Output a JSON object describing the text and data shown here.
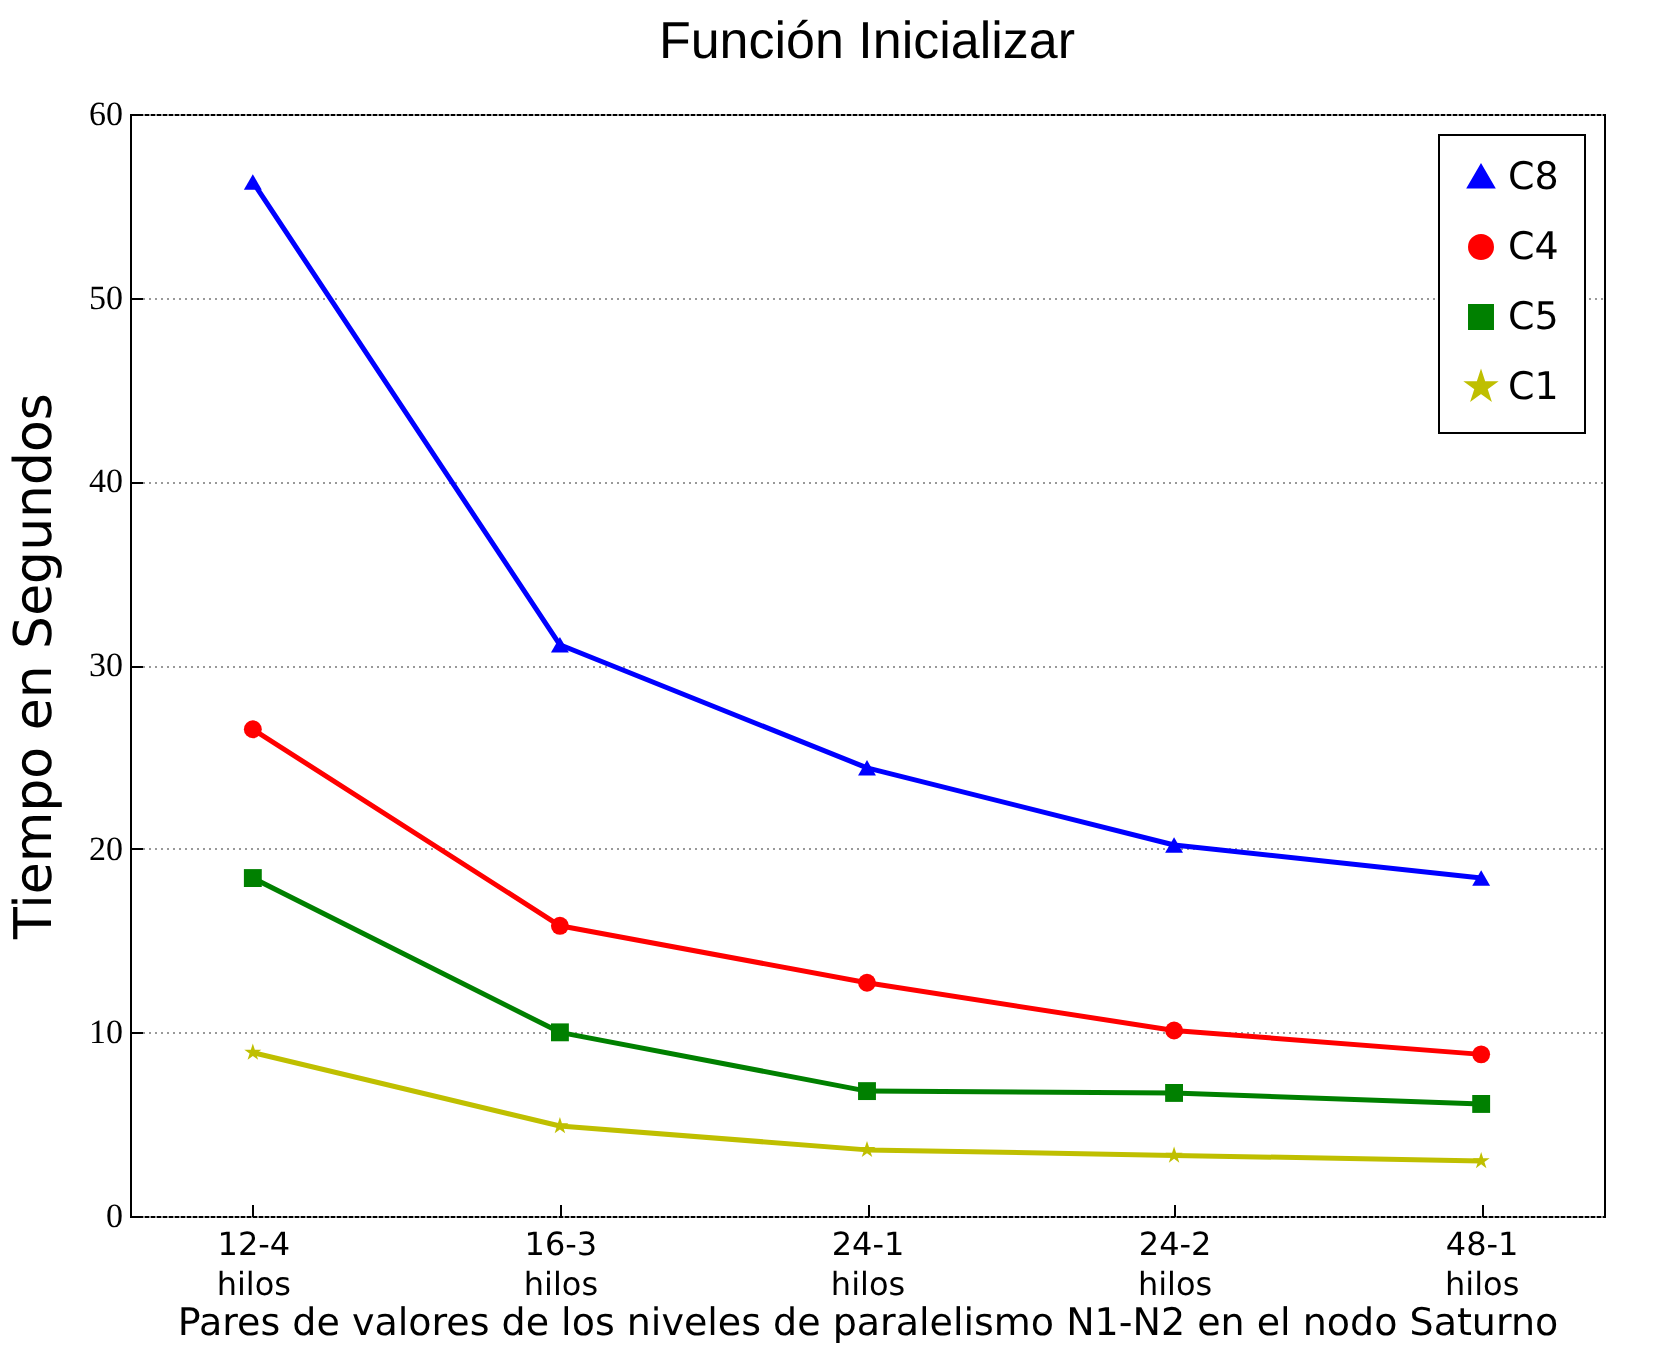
{
  "chart_data": {
    "type": "line",
    "title": "Función Inicializar",
    "xlabel": "Pares de valores de los niveles de paralelismo N1-N2 en el nodo Saturno",
    "ylabel": "Tiempo en Segundos",
    "categories": [
      "12-4 hilos",
      "16-3 hilos",
      "24-1 hilos",
      "24-2 hilos",
      "48-1 hilos"
    ],
    "ylim": [
      0,
      60
    ],
    "yticks": [
      0,
      10,
      20,
      30,
      40,
      50,
      60
    ],
    "grid": "y",
    "legend": "top right",
    "series": [
      {
        "name": "C8",
        "color": "#0000ff",
        "marker": "triangle",
        "values": [
          56.3,
          31.1,
          24.4,
          20.2,
          18.4
        ]
      },
      {
        "name": "C4",
        "color": "#ff0000",
        "marker": "circle",
        "values": [
          26.5,
          15.8,
          12.7,
          10.1,
          8.8
        ]
      },
      {
        "name": "C5",
        "color": "#008000",
        "marker": "square",
        "values": [
          18.4,
          10.0,
          6.8,
          6.7,
          6.1
        ]
      },
      {
        "name": "C1",
        "color": "#bfbf00",
        "marker": "star",
        "values": [
          8.9,
          4.9,
          3.6,
          3.3,
          3.0
        ]
      }
    ]
  }
}
